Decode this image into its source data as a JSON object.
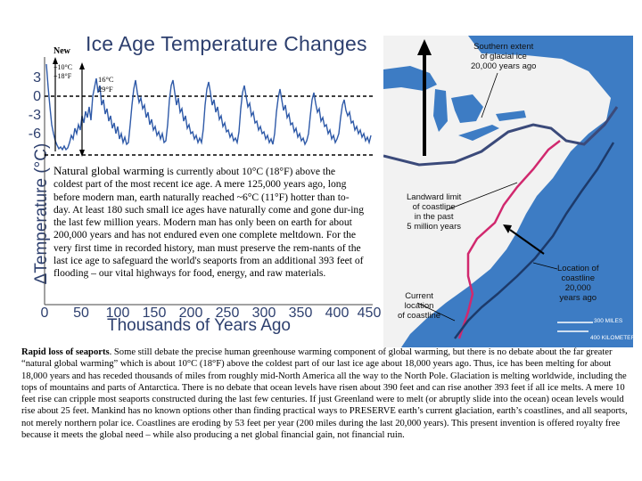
{
  "figure": {
    "title": "Ice Age Temperature Changes",
    "new_label": "New",
    "ylabel": "ΔTemperature (°C)",
    "xlabel": "Thousands of Years Ago",
    "y_ticks": [
      "3",
      "0",
      "-3",
      "-6"
    ],
    "x_ticks": [
      "0",
      "50",
      "100",
      "150",
      "200",
      "250",
      "300",
      "350",
      "400",
      "450"
    ],
    "ann_small_line1": "+10°C",
    "ann_small_line2": "+18°F",
    "ann_big_line1": "16°C",
    "ann_big_line2": "29°F"
  },
  "paragraph": {
    "lead": "Natural global warming",
    "rest": " is currently about 10°C (18°F) above the coldest part of the most recent ice age. A mere 125,000 years ago, long before modern man, earth naturally reached ~6°C (11°F) hotter than to-day. At least 180 such small ice ages have naturally come and gone dur-ing the last few million years. Modern man has only been on earth for about 200,000 years and has not endured even one complete meltdown. For the very first time in recorded history, man must preserve the rem-nants of the last ice age to safeguard the world's seaports from an additional 393 feet of flooding – our vital highways for food, energy, and raw materials."
  },
  "map": {
    "label_ice_1": "Southern extent",
    "label_ice_2": "of glacial ice",
    "label_ice_3": "20,000 years ago",
    "label_landward_1": "Landward limit",
    "label_landward_2": "of coastline",
    "label_landward_3": "in the past",
    "label_landward_4": "5 million years",
    "label_loc_1": "Location of",
    "label_loc_2": "coastline",
    "label_loc_3": "20,000",
    "label_loc_4": "years ago",
    "label_cur_1": "Current",
    "label_cur_2": "location",
    "label_cur_3": "of coastline",
    "scale_miles": "300 MILES",
    "scale_km": "400 KILOMETERS",
    "colors": {
      "ocean": "#3d7cc4",
      "land": "#f2f2f2",
      "ice_line": "#3b4a7a",
      "landward_line": "#d1286e"
    }
  },
  "bottom": {
    "heading": "Rapid loss of seaports",
    "text": ". Some still debate the precise human greenhouse warming component of global warming, but there is no debate about the far greater “natural global warming” which is about 10°C (18°F) above the coldest part of our last ice age about 18,000 years ago. Thus, ice has been melting for about 18,000 years and has receded thousands of miles from roughly mid-North America all the way to the North Pole. Glaciation is melting worldwide, including the tops of mountains and parts of Antarctica. There is no debate that ocean levels have risen about 390 feet and can rise another 393 feet if all ice melts. A mere 10 feet rise can cripple most seaports constructed during the last few centuries. If just Greenland were to melt (or abruptly slide into the ocean) ocean levels would rise about 25 feet. Mankind has no known options other than finding practical ways to PRESERVE earth’s current glaciation, earth’s coastlines, and all seaports, not merely northern polar ice. Coastlines are eroding by 53 feet per year (200 miles during the last 20,000 years). This present invention is offered royalty free because it meets the global need – while also producing a net global financial gain, not financial ruin."
  }
}
